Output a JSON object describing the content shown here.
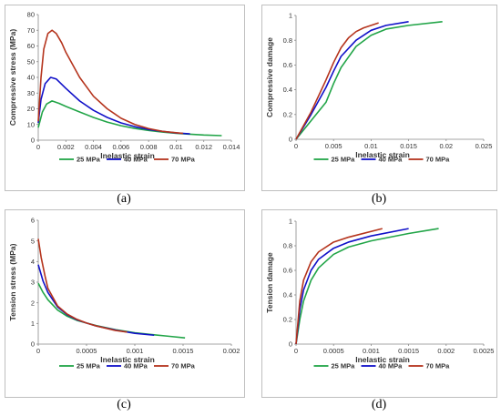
{
  "panels": [
    {
      "caption": "(a)",
      "chart_data": {
        "type": "line",
        "xlabel": "Inelastic strain",
        "ylabel": "Compressive stress (MPa)",
        "xlim": [
          0,
          0.014
        ],
        "ylim": [
          0,
          80
        ],
        "xticks": [
          "0",
          "0.002",
          "0.004",
          "0.006",
          "0.008",
          "0.01",
          "0.012",
          "0.014"
        ],
        "yticks": [
          "0",
          "10",
          "20",
          "30",
          "40",
          "50",
          "60",
          "70",
          "80"
        ],
        "legend_position": "bottom",
        "series": [
          {
            "name": "25 MPa",
            "color": "#22a548",
            "points": [
              [
                0,
                8
              ],
              [
                0.0003,
                18
              ],
              [
                0.0006,
                23
              ],
              [
                0.001,
                25
              ],
              [
                0.0015,
                23.5
              ],
              [
                0.002,
                21.5
              ],
              [
                0.003,
                18
              ],
              [
                0.004,
                14.5
              ],
              [
                0.005,
                11.5
              ],
              [
                0.006,
                9.2
              ],
              [
                0.007,
                7.5
              ],
              [
                0.008,
                6.2
              ],
              [
                0.009,
                5.2
              ],
              [
                0.01,
                4.4
              ],
              [
                0.011,
                3.8
              ],
              [
                0.012,
                3.3
              ],
              [
                0.0133,
                2.9
              ]
            ]
          },
          {
            "name": "40 MPa",
            "color": "#1010c8",
            "points": [
              [
                0,
                11
              ],
              [
                0.0002,
                26
              ],
              [
                0.0005,
                36
              ],
              [
                0.0009,
                40
              ],
              [
                0.0013,
                39
              ],
              [
                0.002,
                33
              ],
              [
                0.003,
                25
              ],
              [
                0.004,
                19
              ],
              [
                0.005,
                14.5
              ],
              [
                0.006,
                11
              ],
              [
                0.007,
                8.6
              ],
              [
                0.008,
                6.8
              ],
              [
                0.009,
                5.6
              ],
              [
                0.01,
                4.6
              ],
              [
                0.011,
                4
              ]
            ]
          },
          {
            "name": "70 MPa",
            "color": "#b5341d",
            "points": [
              [
                0,
                12
              ],
              [
                0.0002,
                40
              ],
              [
                0.0004,
                58
              ],
              [
                0.0007,
                68
              ],
              [
                0.001,
                70
              ],
              [
                0.0013,
                68
              ],
              [
                0.0017,
                62
              ],
              [
                0.002,
                56
              ],
              [
                0.003,
                40
              ],
              [
                0.004,
                28
              ],
              [
                0.005,
                20
              ],
              [
                0.006,
                14
              ],
              [
                0.007,
                10
              ],
              [
                0.008,
                7.4
              ],
              [
                0.009,
                5.6
              ],
              [
                0.0105,
                4.3
              ]
            ]
          }
        ]
      }
    },
    {
      "caption": "(b)",
      "chart_data": {
        "type": "line",
        "xlabel": "Inelastic strain",
        "ylabel": "Compressive damage",
        "xlim": [
          0,
          0.025
        ],
        "ylim": [
          0,
          1
        ],
        "xticks": [
          "0",
          "0.005",
          "0.01",
          "0.015",
          "0.02",
          "0.025"
        ],
        "yticks": [
          "0",
          "0.2",
          "0.4",
          "0.6",
          "0.8",
          "1"
        ],
        "legend_position": "bottom",
        "series": [
          {
            "name": "25 MPa",
            "color": "#22a548",
            "points": [
              [
                0,
                0
              ],
              [
                0.002,
                0.15
              ],
              [
                0.004,
                0.3
              ],
              [
                0.005,
                0.45
              ],
              [
                0.006,
                0.58
              ],
              [
                0.008,
                0.75
              ],
              [
                0.01,
                0.84
              ],
              [
                0.012,
                0.89
              ],
              [
                0.015,
                0.92
              ],
              [
                0.0195,
                0.95
              ]
            ]
          },
          {
            "name": "40 MPa",
            "color": "#1010c8",
            "points": [
              [
                0,
                0
              ],
              [
                0.002,
                0.2
              ],
              [
                0.004,
                0.42
              ],
              [
                0.005,
                0.55
              ],
              [
                0.006,
                0.67
              ],
              [
                0.008,
                0.8
              ],
              [
                0.01,
                0.88
              ],
              [
                0.012,
                0.92
              ],
              [
                0.015,
                0.95
              ]
            ]
          },
          {
            "name": "70 MPa",
            "color": "#b5341d",
            "points": [
              [
                0,
                0
              ],
              [
                0.002,
                0.22
              ],
              [
                0.004,
                0.48
              ],
              [
                0.005,
                0.62
              ],
              [
                0.006,
                0.74
              ],
              [
                0.007,
                0.82
              ],
              [
                0.008,
                0.87
              ],
              [
                0.009,
                0.9
              ],
              [
                0.011,
                0.94
              ]
            ]
          }
        ]
      }
    },
    {
      "caption": "(c)",
      "chart_data": {
        "type": "line",
        "xlabel": "Inelastic strain",
        "ylabel": "Tension stress (MPa)",
        "xlim": [
          0,
          0.002
        ],
        "ylim": [
          0,
          6
        ],
        "xticks": [
          "0",
          "0.0005",
          "0.001",
          "0.0015",
          "0.002"
        ],
        "yticks": [
          "0",
          "1",
          "2",
          "3",
          "4",
          "5",
          "6"
        ],
        "legend_position": "bottom",
        "series": [
          {
            "name": "25 MPa",
            "color": "#22a548",
            "points": [
              [
                0,
                2.95
              ],
              [
                5e-05,
                2.5
              ],
              [
                0.0001,
                2.15
              ],
              [
                0.0002,
                1.65
              ],
              [
                0.0003,
                1.35
              ],
              [
                0.0004,
                1.15
              ],
              [
                0.0005,
                1.02
              ],
              [
                0.0006,
                0.9
              ],
              [
                0.0008,
                0.7
              ],
              [
                0.001,
                0.55
              ],
              [
                0.0012,
                0.45
              ],
              [
                0.00135,
                0.38
              ],
              [
                0.00152,
                0.3
              ]
            ]
          },
          {
            "name": "40 MPa",
            "color": "#1010c8",
            "points": [
              [
                0,
                3.85
              ],
              [
                5e-05,
                3.05
              ],
              [
                0.0001,
                2.5
              ],
              [
                0.0002,
                1.8
              ],
              [
                0.0003,
                1.42
              ],
              [
                0.0004,
                1.18
              ],
              [
                0.0005,
                1.02
              ],
              [
                0.0006,
                0.88
              ],
              [
                0.0008,
                0.68
              ],
              [
                0.001,
                0.52
              ],
              [
                0.0012,
                0.43
              ]
            ]
          },
          {
            "name": "70 MPa",
            "color": "#b5341d",
            "points": [
              [
                0,
                5.1
              ],
              [
                3e-05,
                4.2
              ],
              [
                7e-05,
                3.3
              ],
              [
                0.0001,
                2.7
              ],
              [
                0.0002,
                1.85
              ],
              [
                0.0003,
                1.45
              ],
              [
                0.0004,
                1.2
              ],
              [
                0.0005,
                1.02
              ],
              [
                0.0006,
                0.88
              ],
              [
                0.0008,
                0.66
              ],
              [
                0.00092,
                0.58
              ]
            ]
          }
        ]
      }
    },
    {
      "caption": "(d)",
      "chart_data": {
        "type": "line",
        "xlabel": "Inelastic strain",
        "ylabel": "Tension damage",
        "xlim": [
          0,
          0.0025
        ],
        "ylim": [
          0,
          1
        ],
        "xticks": [
          "0",
          "0.0005",
          "0.001",
          "0.0015",
          "0.002",
          "0.0025"
        ],
        "yticks": [
          "0",
          "0.2",
          "0.4",
          "0.6",
          "0.8",
          "1"
        ],
        "legend_position": "bottom",
        "series": [
          {
            "name": "25 MPa",
            "color": "#22a548",
            "points": [
              [
                0,
                0
              ],
              [
                5e-05,
                0.2
              ],
              [
                0.0001,
                0.35
              ],
              [
                0.0002,
                0.52
              ],
              [
                0.0003,
                0.62
              ],
              [
                0.0005,
                0.73
              ],
              [
                0.0007,
                0.79
              ],
              [
                0.001,
                0.84
              ],
              [
                0.0015,
                0.9
              ],
              [
                0.0019,
                0.94
              ]
            ]
          },
          {
            "name": "40 MPa",
            "color": "#1010c8",
            "points": [
              [
                0,
                0
              ],
              [
                5e-05,
                0.28
              ],
              [
                0.0001,
                0.44
              ],
              [
                0.0002,
                0.6
              ],
              [
                0.0003,
                0.69
              ],
              [
                0.0005,
                0.78
              ],
              [
                0.0007,
                0.83
              ],
              [
                0.001,
                0.88
              ],
              [
                0.0015,
                0.94
              ]
            ]
          },
          {
            "name": "70 MPa",
            "color": "#b5341d",
            "points": [
              [
                0,
                0
              ],
              [
                5e-05,
                0.35
              ],
              [
                0.0001,
                0.52
              ],
              [
                0.0002,
                0.67
              ],
              [
                0.0003,
                0.75
              ],
              [
                0.0005,
                0.83
              ],
              [
                0.0007,
                0.87
              ],
              [
                0.00115,
                0.94
              ]
            ]
          }
        ]
      }
    }
  ]
}
